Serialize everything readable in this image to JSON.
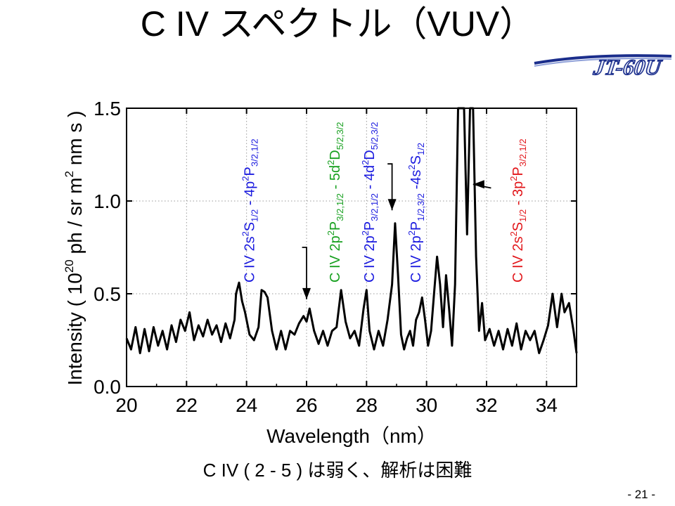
{
  "slide": {
    "title": "C IV スペクトル（VUV）",
    "logo_text": "JT-60U",
    "caption": "C IV ( 2 - 5 ) は弱く、解析は困難",
    "page_number": "- 21 -"
  },
  "colors": {
    "blue": "#1a1adf",
    "green": "#17a01f",
    "red": "#e2171b",
    "logo": "#1b2e8c"
  },
  "chart_data": {
    "type": "line",
    "xlabel": "Wavelength（nm）",
    "ylabel": "Intensity（10^20 ph / sr m^2 nm s）",
    "ylabel_parts": {
      "pre": "Intensity ( 10",
      "exp20": "20",
      "mid": " ph / sr m",
      "exp2": "2",
      "post": " nm s )"
    },
    "xlim": [
      20,
      35
    ],
    "ylim": [
      0,
      1.5
    ],
    "xticks": [
      20,
      22,
      24,
      26,
      28,
      30,
      32,
      34
    ],
    "yticks": [
      0.0,
      0.5,
      1.0,
      1.5
    ],
    "ytick_labels": [
      "0.0",
      "0.5",
      "1.0",
      "1.5"
    ],
    "grid": true,
    "series": [
      {
        "x": [
          20.0,
          20.15,
          20.3,
          20.45,
          20.6,
          20.75,
          20.9,
          21.05,
          21.2,
          21.35,
          21.5,
          21.65,
          21.8,
          21.95,
          22.1,
          22.25,
          22.4,
          22.55,
          22.7,
          22.85,
          23.0,
          23.15,
          23.3,
          23.45,
          23.6,
          23.65,
          23.75,
          23.85,
          23.95,
          24.1,
          24.25,
          24.4,
          24.5,
          24.6,
          24.7,
          24.85,
          25.0,
          25.15,
          25.3,
          25.45,
          25.6,
          25.75,
          25.9,
          26.0,
          26.1,
          26.25,
          26.4,
          26.55,
          26.7,
          26.85,
          27.0,
          27.15,
          27.3,
          27.45,
          27.6,
          27.75,
          27.9,
          28.0,
          28.1,
          28.25,
          28.4,
          28.55,
          28.7,
          28.85,
          28.95,
          29.05,
          29.15,
          29.25,
          29.35,
          29.45,
          29.55,
          29.65,
          29.75,
          29.85,
          29.95,
          30.05,
          30.15,
          30.25,
          30.35,
          30.45,
          30.55,
          30.65,
          30.75,
          30.85,
          30.95,
          31.05,
          31.15,
          31.25,
          31.35,
          31.45,
          31.55,
          31.65,
          31.75,
          31.85,
          31.95,
          32.1,
          32.25,
          32.4,
          32.55,
          32.7,
          32.85,
          33.0,
          33.15,
          33.3,
          33.45,
          33.6,
          33.75,
          33.9,
          34.05,
          34.2,
          34.35,
          34.5,
          34.6,
          34.75,
          34.9,
          35.0
        ],
        "y": [
          0.26,
          0.2,
          0.32,
          0.18,
          0.31,
          0.19,
          0.32,
          0.22,
          0.3,
          0.2,
          0.33,
          0.24,
          0.36,
          0.3,
          0.4,
          0.25,
          0.33,
          0.27,
          0.36,
          0.28,
          0.33,
          0.24,
          0.34,
          0.26,
          0.36,
          0.5,
          0.56,
          0.46,
          0.4,
          0.28,
          0.25,
          0.32,
          0.52,
          0.51,
          0.48,
          0.3,
          0.2,
          0.3,
          0.2,
          0.3,
          0.28,
          0.34,
          0.38,
          0.35,
          0.42,
          0.3,
          0.23,
          0.3,
          0.22,
          0.3,
          0.32,
          0.52,
          0.35,
          0.26,
          0.3,
          0.22,
          0.42,
          0.52,
          0.3,
          0.2,
          0.3,
          0.22,
          0.36,
          0.55,
          0.88,
          0.6,
          0.28,
          0.2,
          0.26,
          0.3,
          0.22,
          0.36,
          0.4,
          0.48,
          0.36,
          0.22,
          0.3,
          0.5,
          0.7,
          0.55,
          0.32,
          0.6,
          0.42,
          0.22,
          0.55,
          1.5,
          1.5,
          1.5,
          0.82,
          1.5,
          1.5,
          0.7,
          0.3,
          0.45,
          0.25,
          0.31,
          0.22,
          0.3,
          0.2,
          0.31,
          0.22,
          0.34,
          0.2,
          0.3,
          0.25,
          0.3,
          0.18,
          0.25,
          0.33,
          0.5,
          0.32,
          0.5,
          0.4,
          0.45,
          0.3,
          0.18
        ]
      }
    ],
    "annotations": [
      {
        "color": "blue",
        "x": 24.25,
        "parts": [
          {
            "t": "C IV 2s"
          },
          {
            "t": "2",
            "s": "sup"
          },
          {
            "t": "S"
          },
          {
            "t": "1/2",
            "s": "sub"
          },
          {
            "t": " - 4p"
          },
          {
            "t": "2",
            "s": "sup"
          },
          {
            "t": "P"
          },
          {
            "t": "3/2,1/2",
            "s": "sub"
          }
        ]
      },
      {
        "color": "green",
        "x": 27.1,
        "parts": [
          {
            "t": "C IV 2p"
          },
          {
            "t": "2",
            "s": "sup"
          },
          {
            "t": "P"
          },
          {
            "t": "3/2,1/2",
            "s": "sub"
          },
          {
            "t": " - 5d"
          },
          {
            "t": "2",
            "s": "sup"
          },
          {
            "t": "D"
          },
          {
            "t": "5/2,3/2",
            "s": "sub"
          }
        ]
      },
      {
        "color": "blue",
        "x": 28.25,
        "parts": [
          {
            "t": "C IV 2p"
          },
          {
            "t": "2",
            "s": "sup"
          },
          {
            "t": "P"
          },
          {
            "t": "3/2,1/2",
            "s": "sub"
          },
          {
            "t": " - 4d"
          },
          {
            "t": "2",
            "s": "sup"
          },
          {
            "t": "D"
          },
          {
            "t": "5/2,3/2",
            "s": "sub"
          }
        ]
      },
      {
        "color": "blue",
        "x": 29.8,
        "parts": [
          {
            "t": "C IV 2p"
          },
          {
            "t": "2",
            "s": "sup"
          },
          {
            "t": "P"
          },
          {
            "t": "1/2,3/2",
            "s": "sub"
          },
          {
            "t": " -4s"
          },
          {
            "t": "2",
            "s": "sup"
          },
          {
            "t": "S"
          },
          {
            "t": "1/2",
            "s": "sub"
          }
        ]
      },
      {
        "color": "red",
        "x": 33.2,
        "parts": [
          {
            "t": "C IV 2s"
          },
          {
            "t": "2",
            "s": "sup"
          },
          {
            "t": "S"
          },
          {
            "t": "1/2",
            "s": "sub"
          },
          {
            "t": " - 3p"
          },
          {
            "t": "2",
            "s": "sup"
          },
          {
            "t": "P"
          },
          {
            "t": "3/2,1/2",
            "s": "sub"
          }
        ]
      }
    ],
    "arrows": [
      {
        "name": "arrow-26nm",
        "points": [
          [
            25.85,
            0.75
          ],
          [
            26.0,
            0.75
          ],
          [
            26.0,
            0.47
          ]
        ],
        "head": "down"
      },
      {
        "name": "arrow-29nm",
        "points": [
          [
            28.7,
            1.2
          ],
          [
            28.85,
            1.2
          ],
          [
            28.85,
            0.95
          ]
        ],
        "head": "down"
      },
      {
        "name": "arrow-31nm",
        "points": [
          [
            32.15,
            1.07
          ],
          [
            31.55,
            1.09
          ]
        ],
        "head": "left"
      }
    ]
  }
}
